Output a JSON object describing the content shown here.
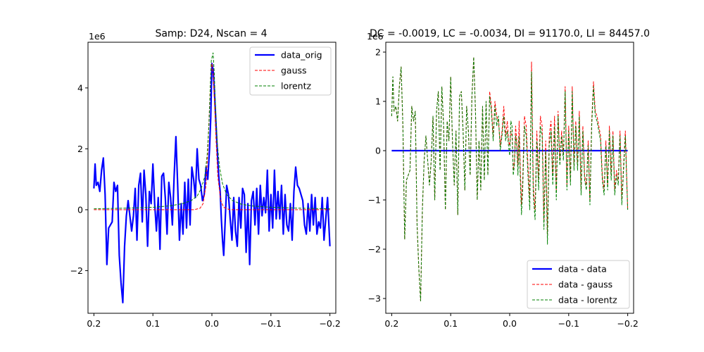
{
  "chart_data": [
    {
      "type": "line",
      "title": "Samp: D24, Nscan = 4",
      "xlabel": "",
      "ylabel": "",
      "xlim": [
        0.21,
        -0.21
      ],
      "ylim": [
        -3.4,
        5.5
      ],
      "y_multiplier_label": "1e6",
      "xticks": [
        0.2,
        0.1,
        0.0,
        -0.1,
        -0.2
      ],
      "xtick_labels": [
        "0.2",
        "0.1",
        "0.0",
        "−0.1",
        "−0.2"
      ],
      "yticks": [
        -2,
        0,
        2,
        4
      ],
      "ytick_labels": [
        "−2",
        "0",
        "2",
        "4"
      ],
      "legend_position": "upper right",
      "series": [
        {
          "name": "data_orig",
          "color": "#0000ff",
          "style": "solid",
          "x": [
            0.2,
            0.198,
            0.196,
            0.193,
            0.19,
            0.187,
            0.184,
            0.181,
            0.178,
            0.175,
            0.172,
            0.169,
            0.166,
            0.163,
            0.16,
            0.157,
            0.154,
            0.151,
            0.148,
            0.145,
            0.142,
            0.139,
            0.136,
            0.133,
            0.13,
            0.127,
            0.124,
            0.121,
            0.118,
            0.115,
            0.112,
            0.109,
            0.106,
            0.103,
            0.1,
            0.097,
            0.094,
            0.091,
            0.088,
            0.085,
            0.082,
            0.079,
            0.076,
            0.073,
            0.07,
            0.067,
            0.064,
            0.061,
            0.058,
            0.055,
            0.052,
            0.049,
            0.046,
            0.043,
            0.04,
            0.037,
            0.034,
            0.031,
            0.028,
            0.025,
            0.022,
            0.019,
            0.016,
            0.013,
            0.01,
            0.007,
            0.004,
            0.002,
            0.0,
            -0.002,
            -0.004,
            -0.006,
            -0.008,
            -0.01,
            -0.012,
            -0.014,
            -0.016,
            -0.018,
            -0.02,
            -0.022,
            -0.025,
            -0.028,
            -0.031,
            -0.034,
            -0.037,
            -0.04,
            -0.043,
            -0.046,
            -0.049,
            -0.052,
            -0.055,
            -0.058,
            -0.061,
            -0.064,
            -0.067,
            -0.07,
            -0.073,
            -0.076,
            -0.079,
            -0.082,
            -0.085,
            -0.088,
            -0.091,
            -0.094,
            -0.097,
            -0.1,
            -0.103,
            -0.106,
            -0.109,
            -0.112,
            -0.115,
            -0.118,
            -0.121,
            -0.124,
            -0.127,
            -0.13,
            -0.133,
            -0.136,
            -0.139,
            -0.142,
            -0.145,
            -0.148,
            -0.151,
            -0.154,
            -0.157,
            -0.16,
            -0.163,
            -0.166,
            -0.169,
            -0.172,
            -0.175,
            -0.178,
            -0.181,
            -0.184,
            -0.187,
            -0.19,
            -0.193,
            -0.196,
            -0.198,
            -0.2
          ],
          "y": [
            0.7,
            1.5,
            0.8,
            0.9,
            0.6,
            1.3,
            1.7,
            0.5,
            -1.8,
            -0.6,
            -0.5,
            -0.4,
            0.9,
            0.6,
            0.8,
            -1.5,
            -2.4,
            -3.05,
            -1.2,
            -0.2,
            0.3,
            -0.2,
            -0.7,
            -0.2,
            0.7,
            -1.0,
            0.8,
            1.2,
            -0.4,
            1.3,
            0.5,
            -1.2,
            0.6,
            0.2,
            1.5,
            0.2,
            -0.7,
            0.4,
            -1.3,
            1.1,
            1.2,
            0.4,
            -0.8,
            0.9,
            0.4,
            -0.5,
            1.1,
            2.4,
            0.8,
            -1.0,
            0.2,
            -0.8,
            0.9,
            -0.6,
            1.0,
            -0.5,
            1.4,
            1.0,
            0.4,
            2.0,
            1.0,
            0.8,
            0.3,
            0.5,
            1.4,
            1.0,
            2.0,
            3.0,
            4.8,
            4.6,
            4.0,
            3.2,
            2.4,
            1.6,
            1.0,
            0.6,
            -0.3,
            -1.0,
            -1.5,
            -0.6,
            0.8,
            0.5,
            -0.3,
            -1.0,
            0.4,
            -0.7,
            -1.2,
            0.4,
            -0.6,
            0.7,
            0.5,
            -1.4,
            0.2,
            -1.8,
            0.3,
            0.6,
            -0.5,
            0.7,
            -0.8,
            0.8,
            -0.2,
            0.4,
            -0.1,
            1.3,
            -0.7,
            0.5,
            -0.6,
            1.3,
            -0.3,
            0.6,
            -0.3,
            0.8,
            -0.8,
            0.5,
            -0.5,
            -0.7,
            0.2,
            -1.0,
            0.6,
            1.4,
            0.8,
            0.7,
            0.5,
            0.3,
            -0.5,
            -0.8,
            0.2,
            -0.7,
            0.5,
            -0.5,
            0.4,
            -0.8,
            -0.4,
            -0.6,
            0.4,
            -1.0,
            -0.3,
            0.4,
            -0.4,
            -1.2
          ]
        },
        {
          "name": "gauss",
          "color": "#ff0000",
          "style": "dashed",
          "x": [
            0.2,
            0.15,
            0.1,
            0.05,
            0.03,
            0.02,
            0.015,
            0.01,
            0.007,
            0.004,
            0.002,
            0.0,
            -0.002,
            -0.004,
            -0.007,
            -0.01,
            -0.015,
            -0.02,
            -0.03,
            -0.05,
            -0.1,
            -0.15,
            -0.2
          ],
          "y": [
            0.0,
            0.0,
            0.0,
            0.0,
            0.0,
            0.05,
            0.2,
            0.8,
            1.9,
            3.4,
            4.4,
            4.8,
            4.5,
            3.7,
            2.3,
            1.1,
            0.3,
            0.08,
            0.0,
            0.0,
            0.0,
            0.0,
            0.0
          ]
        },
        {
          "name": "lorentz",
          "color": "#008000",
          "style": "dashed",
          "x": [
            0.2,
            0.15,
            0.1,
            0.07,
            0.05,
            0.035,
            0.025,
            0.018,
            0.012,
            0.008,
            0.005,
            0.003,
            0.001,
            -0.002,
            -0.004,
            -0.006,
            -0.009,
            -0.013,
            -0.018,
            -0.025,
            -0.035,
            -0.05,
            -0.07,
            -0.1,
            -0.15,
            -0.2
          ],
          "y": [
            0.03,
            0.05,
            0.08,
            0.13,
            0.2,
            0.3,
            0.45,
            0.7,
            1.1,
            1.8,
            2.8,
            3.9,
            4.9,
            5.15,
            4.5,
            3.4,
            2.2,
            1.4,
            0.85,
            0.5,
            0.3,
            0.18,
            0.12,
            0.08,
            0.05,
            0.03
          ]
        }
      ]
    },
    {
      "type": "line",
      "title": "DC = -0.0019, LC = -0.0034, DI = 91170.0, LI = 84457.0",
      "xlabel": "",
      "ylabel": "",
      "xlim": [
        0.21,
        -0.21
      ],
      "ylim": [
        -3.3,
        2.2
      ],
      "y_multiplier_label": "1e6",
      "xticks": [
        0.2,
        0.1,
        0.0,
        -0.1,
        -0.2
      ],
      "xtick_labels": [
        "0.2",
        "0.1",
        "0.0",
        "−0.1",
        "−0.2"
      ],
      "yticks": [
        -3,
        -2,
        -1,
        0,
        1,
        2
      ],
      "ytick_labels": [
        "−3",
        "−2",
        "−1",
        "0",
        "1",
        "2"
      ],
      "legend_position": "lower right",
      "series": [
        {
          "name": "data - data",
          "color": "#0000ff",
          "style": "solid",
          "x": [
            0.2,
            -0.2
          ],
          "y": [
            0.0,
            0.0
          ]
        },
        {
          "name": "data - gauss",
          "color": "#ff0000",
          "style": "dashed",
          "x": [
            0.2,
            0.198,
            0.196,
            0.193,
            0.19,
            0.187,
            0.184,
            0.181,
            0.178,
            0.175,
            0.172,
            0.169,
            0.166,
            0.163,
            0.16,
            0.157,
            0.154,
            0.151,
            0.148,
            0.145,
            0.142,
            0.139,
            0.136,
            0.133,
            0.13,
            0.127,
            0.124,
            0.121,
            0.118,
            0.115,
            0.112,
            0.109,
            0.106,
            0.103,
            0.1,
            0.097,
            0.094,
            0.091,
            0.088,
            0.085,
            0.082,
            0.079,
            0.076,
            0.073,
            0.07,
            0.067,
            0.064,
            0.061,
            0.058,
            0.055,
            0.052,
            0.049,
            0.046,
            0.043,
            0.04,
            0.037,
            0.034,
            0.031,
            0.028,
            0.025,
            0.022,
            0.019,
            0.016,
            0.013,
            0.01,
            0.007,
            0.004,
            0.002,
            0.0,
            -0.002,
            -0.004,
            -0.006,
            -0.008,
            -0.01,
            -0.012,
            -0.014,
            -0.016,
            -0.018,
            -0.02,
            -0.022,
            -0.025,
            -0.028,
            -0.031,
            -0.034,
            -0.037,
            -0.04,
            -0.043,
            -0.046,
            -0.049,
            -0.052,
            -0.055,
            -0.058,
            -0.061,
            -0.064,
            -0.067,
            -0.07,
            -0.073,
            -0.076,
            -0.079,
            -0.082,
            -0.085,
            -0.088,
            -0.091,
            -0.094,
            -0.097,
            -0.1,
            -0.103,
            -0.106,
            -0.109,
            -0.112,
            -0.115,
            -0.118,
            -0.121,
            -0.124,
            -0.127,
            -0.13,
            -0.133,
            -0.136,
            -0.139,
            -0.142,
            -0.145,
            -0.148,
            -0.151,
            -0.154,
            -0.157,
            -0.16,
            -0.163,
            -0.166,
            -0.169,
            -0.172,
            -0.175,
            -0.178,
            -0.181,
            -0.184,
            -0.187,
            -0.19,
            -0.193,
            -0.196,
            -0.198,
            -0.2
          ],
          "y": [
            0.7,
            1.5,
            0.8,
            0.9,
            0.6,
            1.3,
            1.7,
            0.5,
            -1.8,
            -0.6,
            -0.5,
            -0.4,
            0.9,
            0.6,
            0.8,
            -1.5,
            -2.4,
            -3.05,
            -1.2,
            -0.2,
            0.3,
            -0.2,
            -0.7,
            -0.2,
            0.7,
            -1.0,
            0.8,
            1.2,
            -0.4,
            1.3,
            0.5,
            -1.2,
            0.6,
            0.2,
            1.5,
            0.2,
            -0.7,
            0.4,
            -1.3,
            1.1,
            1.2,
            0.4,
            -0.8,
            0.9,
            0.4,
            -0.5,
            1.1,
            1.9,
            0.8,
            -1.0,
            0.2,
            -0.8,
            0.9,
            -0.6,
            1.0,
            -0.5,
            1.2,
            0.9,
            0.3,
            1.0,
            0.7,
            0.6,
            0.1,
            0.4,
            0.9,
            0.3,
            0.6,
            0.2,
            0.1,
            0.4,
            0.3,
            -0.4,
            -0.2,
            0.5,
            0.2,
            -0.3,
            0.6,
            -0.4,
            -1.1,
            -0.6,
            0.7,
            0.5,
            -0.3,
            -1.0,
            1.8,
            -0.7,
            -1.2,
            0.4,
            -0.6,
            0.7,
            0.5,
            -1.4,
            0.2,
            -1.7,
            0.3,
            0.6,
            -0.5,
            0.7,
            -0.8,
            0.8,
            -0.2,
            0.4,
            -0.1,
            1.3,
            -0.7,
            0.5,
            -0.6,
            1.3,
            -0.3,
            0.6,
            -0.3,
            0.8,
            -0.8,
            0.5,
            -0.5,
            -0.7,
            0.2,
            -1.0,
            0.6,
            1.4,
            0.8,
            0.7,
            0.5,
            0.3,
            -0.5,
            -0.8,
            0.2,
            -0.7,
            0.5,
            -0.5,
            0.4,
            -0.8,
            -0.4,
            -0.6,
            0.4,
            -1.0,
            -0.3,
            0.4,
            -0.4,
            -1.2
          ]
        },
        {
          "name": "data - lorentz",
          "color": "#008000",
          "style": "dashed",
          "x": [
            0.2,
            0.198,
            0.196,
            0.193,
            0.19,
            0.187,
            0.184,
            0.181,
            0.178,
            0.175,
            0.172,
            0.169,
            0.166,
            0.163,
            0.16,
            0.157,
            0.154,
            0.151,
            0.148,
            0.145,
            0.142,
            0.139,
            0.136,
            0.133,
            0.13,
            0.127,
            0.124,
            0.121,
            0.118,
            0.115,
            0.112,
            0.109,
            0.106,
            0.103,
            0.1,
            0.097,
            0.094,
            0.091,
            0.088,
            0.085,
            0.082,
            0.079,
            0.076,
            0.073,
            0.07,
            0.067,
            0.064,
            0.061,
            0.058,
            0.055,
            0.052,
            0.049,
            0.046,
            0.043,
            0.04,
            0.037,
            0.034,
            0.031,
            0.028,
            0.025,
            0.022,
            0.019,
            0.016,
            0.013,
            0.01,
            0.007,
            0.004,
            0.002,
            0.0,
            -0.002,
            -0.004,
            -0.006,
            -0.008,
            -0.01,
            -0.012,
            -0.014,
            -0.016,
            -0.018,
            -0.02,
            -0.022,
            -0.025,
            -0.028,
            -0.031,
            -0.034,
            -0.037,
            -0.04,
            -0.043,
            -0.046,
            -0.049,
            -0.052,
            -0.055,
            -0.058,
            -0.061,
            -0.064,
            -0.067,
            -0.07,
            -0.073,
            -0.076,
            -0.079,
            -0.082,
            -0.085,
            -0.088,
            -0.091,
            -0.094,
            -0.097,
            -0.1,
            -0.103,
            -0.106,
            -0.109,
            -0.112,
            -0.115,
            -0.118,
            -0.121,
            -0.124,
            -0.127,
            -0.13,
            -0.133,
            -0.136,
            -0.139,
            -0.142,
            -0.145,
            -0.148,
            -0.151,
            -0.154,
            -0.157,
            -0.16,
            -0.163,
            -0.166,
            -0.169,
            -0.172,
            -0.175,
            -0.178,
            -0.181,
            -0.184,
            -0.187,
            -0.19,
            -0.193,
            -0.196,
            -0.198,
            -0.2
          ],
          "y": [
            0.7,
            1.5,
            0.8,
            0.9,
            0.6,
            1.3,
            1.7,
            0.5,
            -1.8,
            -0.6,
            -0.5,
            -0.4,
            0.9,
            0.6,
            0.8,
            -1.5,
            -2.4,
            -3.05,
            -1.2,
            -0.2,
            0.3,
            -0.2,
            -0.7,
            -0.2,
            0.7,
            -1.0,
            0.8,
            1.2,
            -0.4,
            1.3,
            0.5,
            -1.2,
            0.6,
            0.2,
            1.5,
            0.2,
            -0.7,
            0.4,
            -1.3,
            1.1,
            1.2,
            0.4,
            -0.8,
            0.9,
            0.4,
            -0.5,
            1.1,
            1.9,
            0.8,
            -1.0,
            0.2,
            -0.8,
            0.9,
            -0.6,
            1.0,
            -0.5,
            1.1,
            0.8,
            0.2,
            0.9,
            0.5,
            0.7,
            0.0,
            0.3,
            0.7,
            0.2,
            0.4,
            0.1,
            -0.1,
            0.6,
            0.5,
            -0.5,
            -0.3,
            0.3,
            0.1,
            -0.5,
            0.3,
            -0.6,
            -1.3,
            -0.8,
            0.5,
            0.3,
            -0.5,
            -1.2,
            1.6,
            -0.9,
            -1.4,
            0.2,
            -0.8,
            0.5,
            0.3,
            -1.6,
            0.0,
            -1.9,
            0.1,
            0.4,
            -0.7,
            0.5,
            -1.0,
            0.7,
            -0.3,
            0.3,
            -0.2,
            1.2,
            -0.8,
            0.4,
            -0.7,
            1.2,
            -0.4,
            0.5,
            -0.4,
            0.7,
            -0.9,
            0.4,
            -0.6,
            -0.8,
            0.1,
            -1.1,
            0.5,
            1.3,
            0.7,
            0.6,
            0.4,
            0.2,
            -0.6,
            -0.9,
            0.1,
            -0.8,
            0.4,
            -0.6,
            0.3,
            -0.9,
            -0.5,
            -0.7,
            0.3,
            -1.1,
            -0.4,
            0.3,
            -0.5,
            -1.2
          ]
        }
      ]
    }
  ]
}
